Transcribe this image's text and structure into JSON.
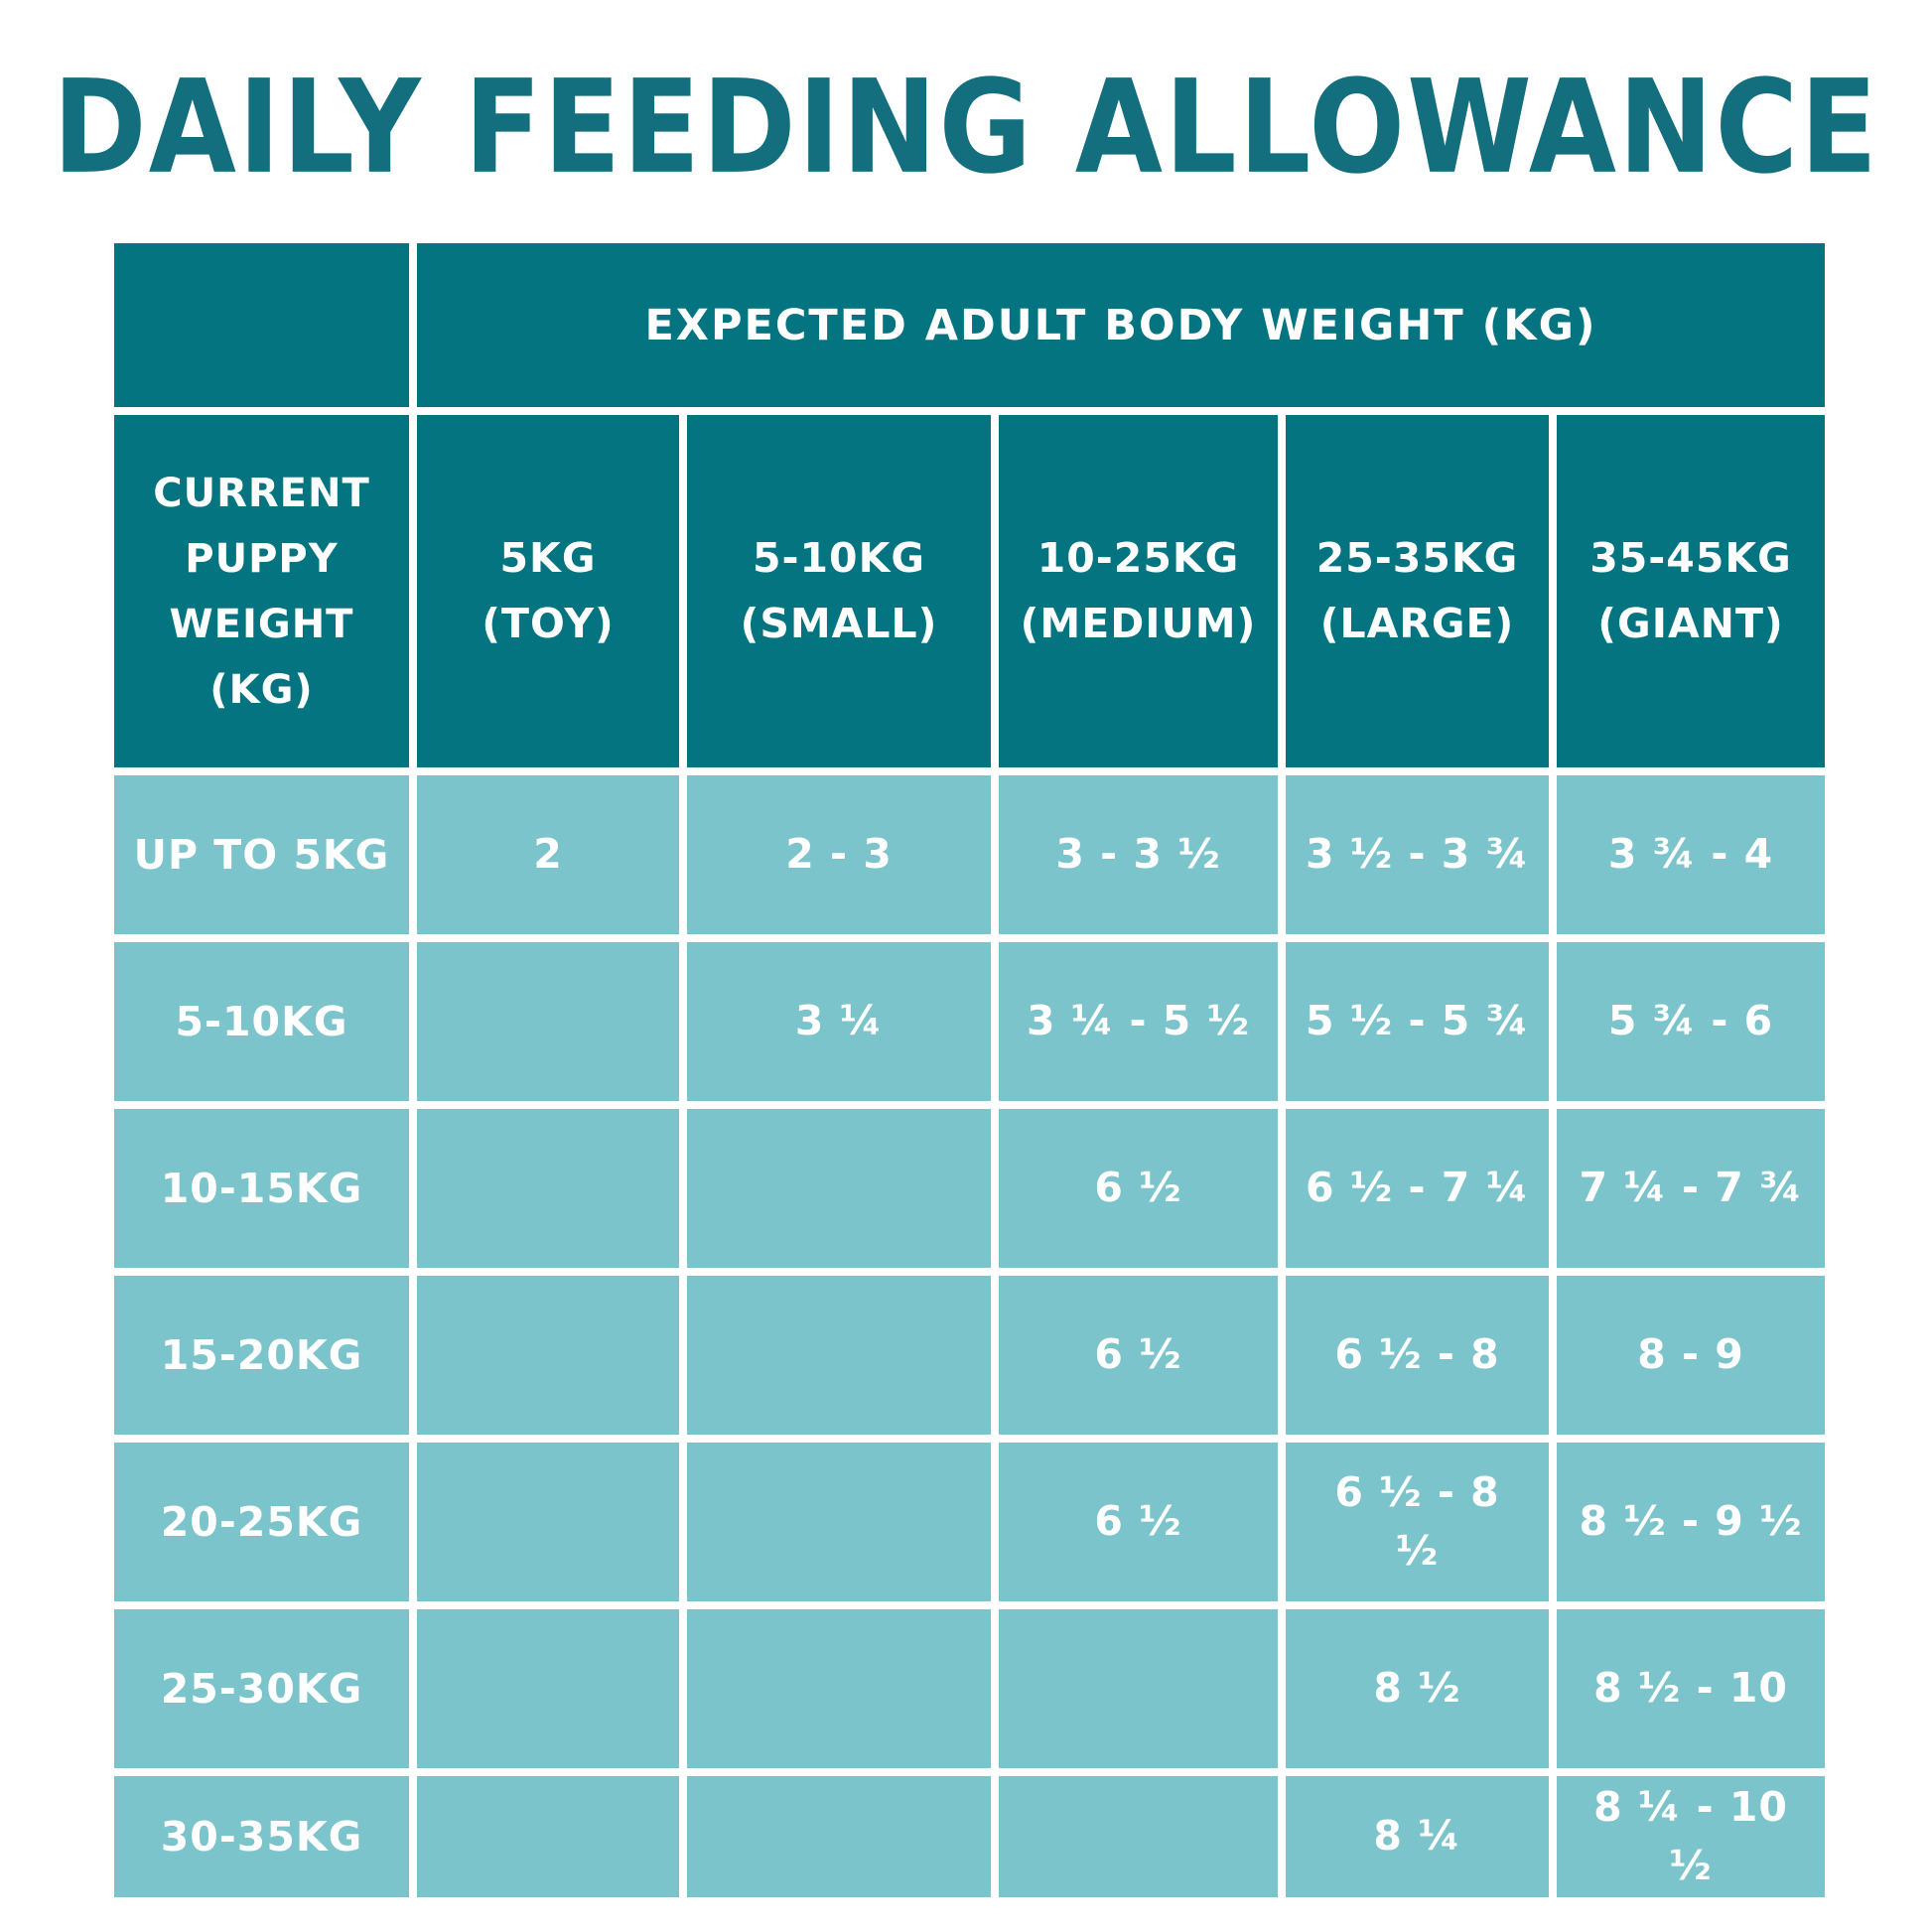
{
  "title": "DAILY FEEDING ALLOWANCE",
  "colors": {
    "title_teal": "#136e7d",
    "header_dark_teal": "#047480",
    "cell_light_teal": "#7cc4cb",
    "text_white": "#ffffff",
    "background": "#ffffff"
  },
  "chart_data": {
    "type": "table",
    "title": "DAILY FEEDING ALLOWANCE",
    "column_group_header": "EXPECTED ADULT BODY WEIGHT (KG)",
    "row_header": "CURRENT PUPPY WEIGHT (KG)",
    "columns": [
      {
        "range": "5KG",
        "size": "(TOY)"
      },
      {
        "range": "5-10KG",
        "size": "(SMALL)"
      },
      {
        "range": "10-25KG",
        "size": "(MEDIUM)"
      },
      {
        "range": "25-35KG",
        "size": "(LARGE)"
      },
      {
        "range": "35-45KG",
        "size": "(GIANT)"
      }
    ],
    "rows": [
      {
        "label": "UP TO 5KG",
        "values": [
          "2",
          "2 - 3",
          "3 - 3 ½",
          "3 ½ - 3 ¾",
          "3 ¾ - 4"
        ]
      },
      {
        "label": "5-10KG",
        "values": [
          "",
          "3 ¼",
          "3 ¼  - 5 ½",
          "5 ½ - 5 ¾",
          "5 ¾ - 6"
        ]
      },
      {
        "label": "10-15KG",
        "values": [
          "",
          "",
          "6 ½",
          "6 ½ - 7 ¼",
          "7 ¼ - 7 ¾"
        ]
      },
      {
        "label": "15-20KG",
        "values": [
          "",
          "",
          "6 ½",
          "6 ½  - 8",
          "8 - 9"
        ]
      },
      {
        "label": "20-25KG",
        "values": [
          "",
          "",
          "6 ½",
          "6 ½  - 8\n½",
          "8 ½ - 9 ½"
        ]
      },
      {
        "label": "25-30KG",
        "values": [
          "",
          "",
          "",
          "8 ½",
          "8 ½ - 10"
        ]
      },
      {
        "label": "30-35KG",
        "values": [
          "",
          "",
          "",
          "8 ¼",
          "8 ¼  - 10\n½"
        ]
      }
    ]
  }
}
